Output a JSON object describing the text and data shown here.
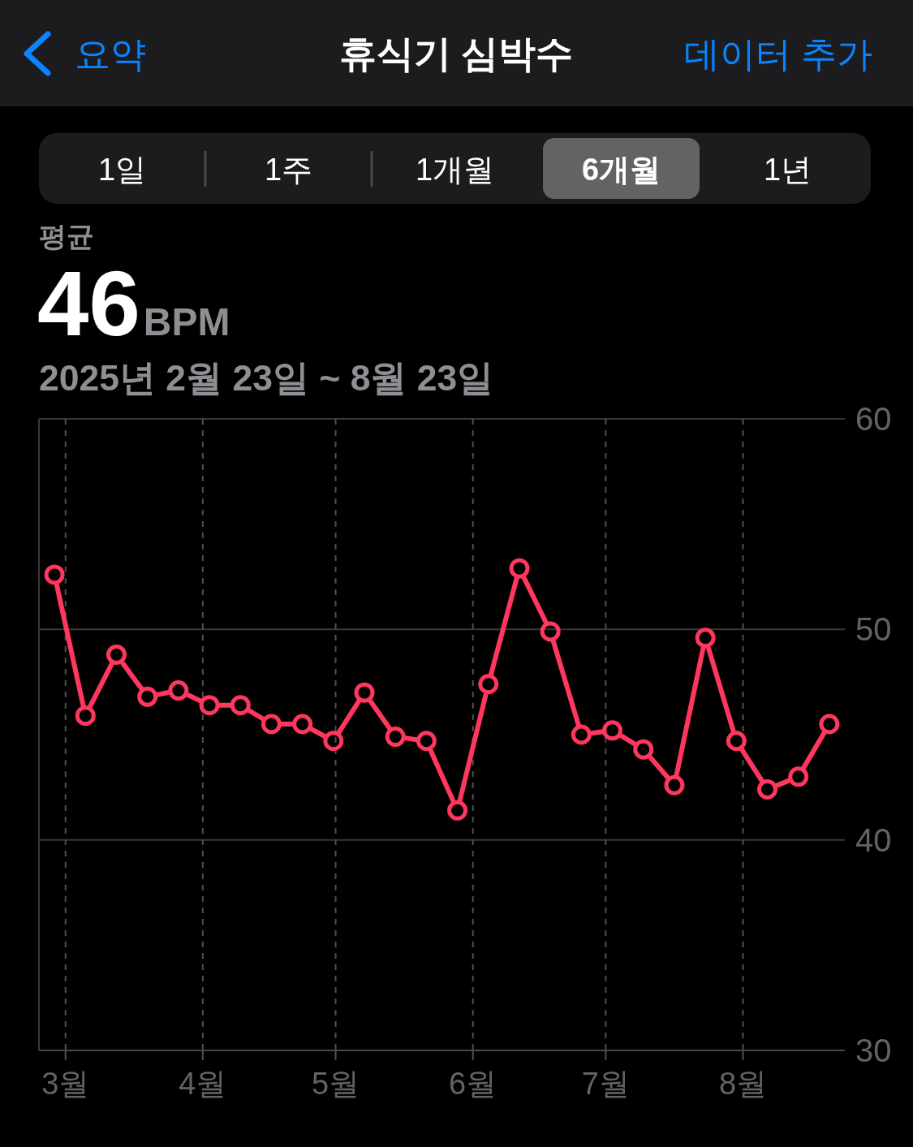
{
  "chart_data": {
    "type": "line",
    "title": "휴식기 심박수",
    "subtitle": "2025년 2월 23일 ~ 8월 23일",
    "annotations": [
      "요약",
      "데이터 추가",
      "1일",
      "1주",
      "1개월",
      "6개월",
      "1년",
      "평균",
      "46",
      "BPM"
    ],
    "x": [
      "2025-02-26T12:00",
      "2025-03-05T12:00",
      "2025-03-12T12:00",
      "2025-03-19T12:00",
      "2025-03-26T12:00",
      "2025-04-02T12:00",
      "2025-04-09T12:00",
      "2025-04-16T12:00",
      "2025-04-23T12:00",
      "2025-04-30T12:00",
      "2025-05-07T12:00",
      "2025-05-14T12:00",
      "2025-05-21T12:00",
      "2025-05-28T12:00",
      "2025-06-04T12:00",
      "2025-06-11T12:00",
      "2025-06-18T12:00",
      "2025-06-25T12:00",
      "2025-07-02T12:00",
      "2025-07-09T12:00",
      "2025-07-16T12:00",
      "2025-07-23T12:00",
      "2025-07-30T12:00",
      "2025-08-06T12:00",
      "2025-08-13T12:00",
      "2025-08-20T12:00"
    ],
    "values": [
      52.6,
      45.9,
      48.8,
      46.8,
      47.1,
      46.4,
      46.4,
      45.5,
      45.5,
      44.7,
      47.0,
      44.9,
      44.7,
      41.4,
      47.4,
      52.9,
      49.9,
      45.0,
      45.2,
      44.3,
      42.6,
      49.6,
      44.7,
      42.4,
      43.0,
      45.5
    ],
    "color": "#ff375f",
    "xlim": [
      "2025-02-23",
      "2025-08-24"
    ],
    "xticks": [
      {
        "value": "2025-03-01",
        "label": "3월"
      },
      {
        "value": "2025-04-01",
        "label": "4월"
      },
      {
        "value": "2025-05-01",
        "label": "5월"
      },
      {
        "value": "2025-06-01",
        "label": "6월"
      },
      {
        "value": "2025-07-01",
        "label": "7월"
      },
      {
        "value": "2025-08-01",
        "label": "8월"
      }
    ],
    "ylim": [
      30,
      60
    ],
    "yticks": [
      30,
      40,
      50,
      60
    ],
    "grid": true,
    "marker": "circle",
    "line_style": "solid"
  }
}
